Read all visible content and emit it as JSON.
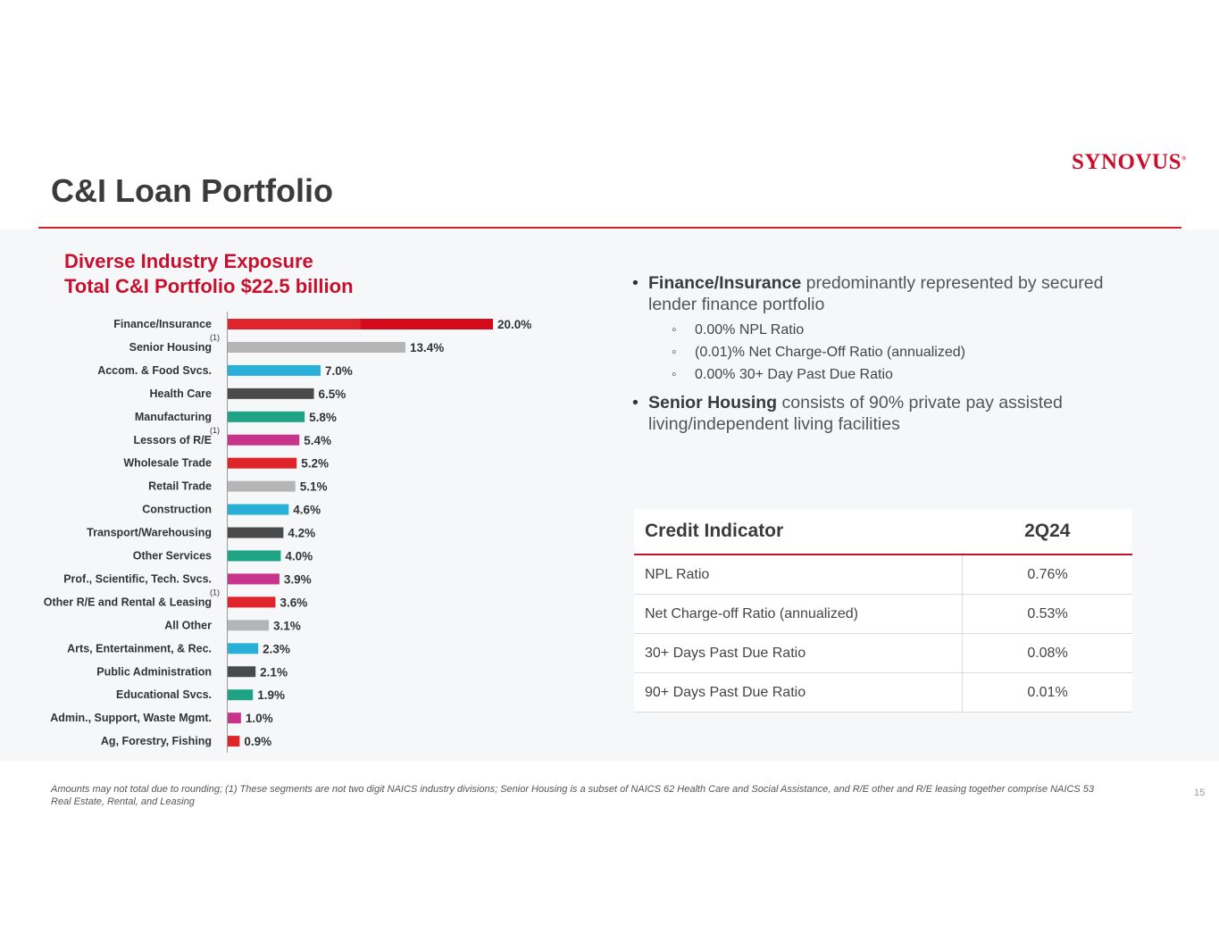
{
  "slide": {
    "title": "C&I Loan Portfolio",
    "logo": "SYNOVUS",
    "logo_mark": "®",
    "page_number": "15",
    "footnote": "Amounts may not total due to rounding; (1) These segments are not two digit NAICS industry divisions; Senior Housing is a subset of NAICS 62 Health Care and Social Assistance, and R/E other and R/E leasing together comprise NAICS 53 Real Estate, Rental, and Leasing"
  },
  "chart_data": {
    "type": "bar",
    "orientation": "horizontal",
    "title": "Diverse Industry Exposure",
    "subtitle": "Total C&I Portfolio $22.5 billion",
    "unit": "%",
    "categories": [
      "Finance/Insurance",
      "Senior Housing",
      "Accom. & Food Svcs.",
      "Health Care",
      "Manufacturing",
      "Lessors of R/E",
      "Wholesale Trade",
      "Retail Trade",
      "Construction",
      "Transport/Warehousing",
      "Other Services",
      "Prof., Scientific, Tech. Svcs.",
      "Other R/E and Rental & Leasing",
      "All Other",
      "Arts, Entertainment, & Rec.",
      "Public Administration",
      "Educational Svcs.",
      "Admin., Support, Waste Mgmt.",
      "Ag, Forestry, Fishing"
    ],
    "values": [
      20.0,
      13.4,
      7.0,
      6.5,
      5.8,
      5.4,
      5.2,
      5.1,
      4.6,
      4.2,
      4.0,
      3.9,
      3.6,
      3.1,
      2.3,
      2.1,
      1.9,
      1.0,
      0.9
    ],
    "value_labels": [
      "20.0%",
      "13.4%",
      "7.0%",
      "6.5%",
      "5.8%",
      "5.4%",
      "5.2%",
      "5.1%",
      "4.6%",
      "4.2%",
      "4.0%",
      "3.9%",
      "3.6%",
      "3.1%",
      "2.3%",
      "2.1%",
      "1.9%",
      "1.0%",
      "0.9%"
    ],
    "footnote_marks": [
      "",
      "(1)",
      "",
      "",
      "",
      "(1)",
      "",
      "",
      "",
      "",
      "",
      "",
      "(1)",
      "",
      "",
      "",
      "",
      "",
      ""
    ],
    "colors": [
      "#e0242b",
      "#b5b5b5",
      "#29b0d9",
      "#4a4a4a",
      "#1fa385",
      "#c8348c",
      "#e0242b",
      "#b5b5b5",
      "#29b0d9",
      "#4a4a4a",
      "#1fa385",
      "#c8348c",
      "#e0242b",
      "#b5b5b5",
      "#29b0d9",
      "#4a4a4a",
      "#1fa385",
      "#c8348c",
      "#e0242b"
    ],
    "first_bar_segments": [
      {
        "value": 10.0,
        "color": "#e0242b"
      },
      {
        "value": 10.0,
        "color": "#d40a1c"
      }
    ],
    "xlim": [
      0,
      20
    ]
  },
  "bullets": [
    {
      "bold": "Finance/Insurance",
      "text": " predominantly represented by secured lender finance portfolio",
      "sub": [
        "0.00%  NPL Ratio",
        "(0.01)%  Net Charge-Off Ratio (annualized)",
        "0.00%  30+ Day Past Due Ratio"
      ]
    },
    {
      "bold": "Senior Housing",
      "text": " consists of 90% private pay assisted living/independent living facilities"
    }
  ],
  "credit_table": {
    "header": [
      "Credit Indicator",
      "2Q24"
    ],
    "rows": [
      [
        "NPL Ratio",
        "0.76%"
      ],
      [
        "Net Charge-off Ratio (annualized)",
        "0.53%"
      ],
      [
        "30+ Days Past Due Ratio",
        "0.08%"
      ],
      [
        "90+ Days Past Due Ratio",
        "0.01%"
      ]
    ]
  }
}
